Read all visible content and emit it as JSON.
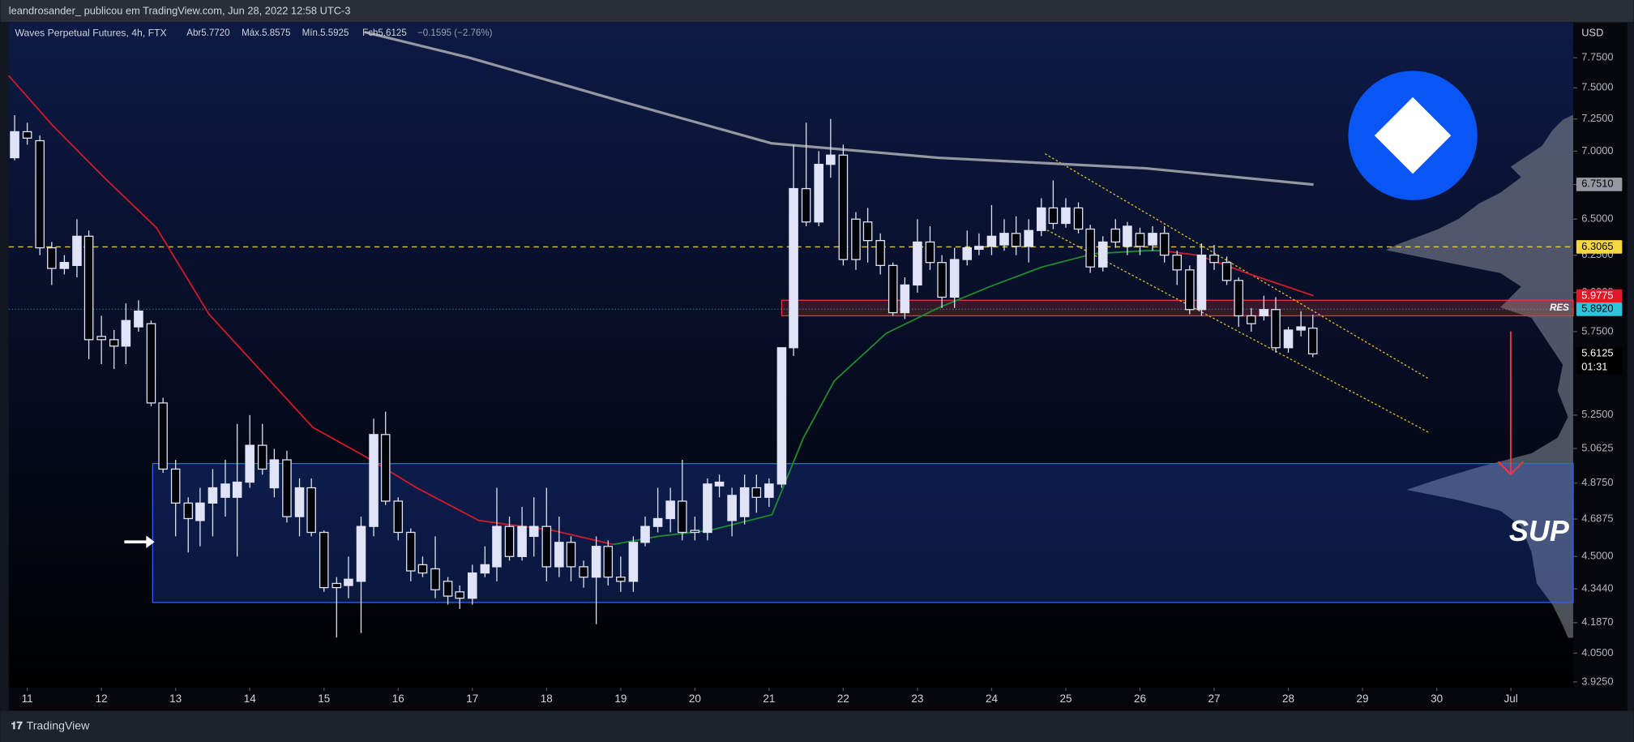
{
  "header": "leandrosander_ publicou em TradingView.com, Jun 28, 2022 12:58 UTC-3",
  "footer": "TradingView",
  "chart_data": {
    "type": "candlestick",
    "title": "Waves Perpetual Futures, 4h, FTX",
    "ohlc_legend": [
      "Abr5.7720",
      "Máx.5.8575",
      "Mín.5.5925",
      "Fch5.6125",
      "−0.1595 (−2.76%)"
    ],
    "y_unit": "USD",
    "log_scale": true,
    "grid": false,
    "up_color": "#dfe3f5",
    "down_color": "#02040a",
    "x": [
      10.83,
      11,
      11.17,
      11.33,
      11.5,
      11.67,
      11.83,
      12,
      12.17,
      12.33,
      12.5,
      12.67,
      12.83,
      13,
      13.17,
      13.33,
      13.5,
      13.67,
      13.83,
      14,
      14.17,
      14.33,
      14.5,
      14.67,
      14.83,
      15,
      15.17,
      15.33,
      15.5,
      15.67,
      15.83,
      16,
      16.17,
      16.33,
      16.5,
      16.67,
      16.83,
      17,
      17.17,
      17.33,
      17.5,
      17.67,
      17.83,
      18,
      18.17,
      18.33,
      18.5,
      18.67,
      18.83,
      19,
      19.17,
      19.33,
      19.5,
      19.67,
      19.83,
      20,
      20.17,
      20.33,
      20.5,
      20.67,
      20.83,
      21,
      21.17,
      21.33,
      21.5,
      21.67,
      21.83,
      22,
      22.17,
      22.33,
      22.5,
      22.67,
      22.83,
      23,
      23.17,
      23.33,
      23.5,
      23.67,
      23.83,
      24,
      24.17,
      24.33,
      24.5,
      24.67,
      24.83,
      25,
      25.17,
      25.33,
      25.5,
      25.67,
      25.83,
      26,
      26.17,
      26.33,
      26.5,
      26.67,
      26.83,
      27,
      27.17,
      27.33,
      27.5,
      27.67,
      27.83,
      28,
      28.17,
      28.33
    ],
    "open": [
      6.95,
      7.15,
      7.08,
      6.3,
      6.16,
      6.18,
      6.38,
      5.72,
      5.7,
      5.66,
      5.78,
      5.8,
      5.32,
      4.95,
      4.77,
      4.68,
      4.77,
      4.8,
      4.8,
      4.88,
      5.08,
      4.85,
      5.0,
      4.7,
      4.85,
      4.62,
      4.37,
      4.36,
      4.38,
      4.65,
      5.14,
      4.78,
      4.62,
      4.46,
      4.44,
      4.38,
      4.33,
      4.3,
      4.42,
      4.45,
      4.65,
      4.5,
      4.6,
      4.65,
      4.45,
      4.57,
      4.45,
      4.4,
      4.55,
      4.4,
      4.38,
      4.57,
      4.65,
      4.69,
      4.78,
      4.63,
      4.62,
      4.86,
      4.68,
      4.7,
      4.85,
      4.8,
      4.87,
      5.65,
      6.72,
      6.48,
      6.9,
      6.97,
      6.5,
      6.48,
      6.35,
      6.18,
      5.87,
      6.05,
      6.34,
      6.2,
      5.97,
      6.22,
      6.29,
      6.31,
      6.32,
      6.4,
      6.31,
      6.42,
      6.58,
      6.47,
      6.58,
      6.43,
      6.17,
      6.43,
      6.31,
      6.4,
      6.32,
      6.4,
      6.25,
      6.15,
      5.89,
      6.25,
      6.2,
      6.08,
      5.85,
      5.85,
      5.89,
      5.65,
      5.76,
      5.772
    ],
    "high": [
      7.28,
      7.22,
      7.12,
      6.34,
      6.25,
      6.5,
      6.42,
      5.85,
      5.76,
      5.93,
      5.95,
      5.82,
      5.35,
      5.0,
      4.8,
      4.85,
      4.95,
      5.0,
      5.2,
      5.25,
      5.2,
      5.06,
      5.05,
      4.9,
      4.9,
      4.63,
      4.4,
      4.5,
      4.7,
      5.23,
      5.27,
      4.8,
      4.64,
      4.5,
      4.6,
      4.4,
      4.36,
      4.46,
      4.55,
      4.85,
      4.7,
      4.75,
      4.8,
      4.85,
      4.7,
      4.6,
      4.48,
      4.6,
      4.58,
      4.5,
      4.6,
      4.7,
      4.85,
      4.85,
      5.0,
      4.7,
      4.9,
      4.92,
      4.85,
      4.92,
      4.92,
      4.9,
      5.65,
      7.05,
      7.22,
      7.0,
      7.25,
      7.05,
      6.55,
      6.58,
      6.4,
      6.2,
      6.1,
      6.5,
      6.45,
      6.25,
      6.3,
      6.42,
      6.4,
      6.6,
      6.5,
      6.52,
      6.5,
      6.65,
      6.78,
      6.65,
      6.62,
      6.46,
      6.38,
      6.5,
      6.48,
      6.44,
      6.45,
      6.45,
      6.28,
      6.18,
      6.33,
      6.32,
      6.24,
      6.1,
      5.9,
      5.98,
      5.97,
      5.78,
      5.88,
      5.8575
    ],
    "low": [
      6.93,
      7.05,
      6.25,
      6.05,
      6.12,
      6.1,
      5.58,
      5.55,
      5.52,
      5.55,
      5.75,
      5.3,
      4.93,
      4.6,
      4.52,
      4.55,
      4.6,
      4.7,
      4.5,
      4.85,
      4.92,
      4.8,
      4.67,
      4.6,
      4.6,
      4.33,
      4.12,
      4.3,
      4.14,
      4.6,
      4.76,
      4.58,
      4.38,
      4.4,
      4.3,
      4.27,
      4.25,
      4.27,
      4.4,
      4.38,
      4.48,
      4.48,
      4.5,
      4.38,
      4.4,
      4.38,
      4.35,
      4.18,
      4.36,
      4.33,
      4.33,
      4.55,
      4.62,
      4.62,
      4.58,
      4.58,
      4.58,
      4.8,
      4.6,
      4.66,
      4.72,
      4.75,
      4.85,
      5.6,
      6.45,
      6.45,
      6.8,
      6.18,
      6.15,
      6.2,
      6.12,
      5.85,
      5.83,
      6.0,
      6.15,
      5.9,
      5.9,
      6.18,
      6.25,
      6.25,
      6.28,
      6.25,
      6.2,
      6.38,
      6.43,
      6.44,
      6.4,
      6.13,
      6.14,
      6.3,
      6.25,
      6.25,
      6.28,
      6.2,
      6.05,
      5.86,
      5.85,
      6.15,
      6.05,
      5.78,
      5.75,
      5.82,
      5.62,
      5.62,
      5.72,
      5.5925
    ],
    "close": [
      7.15,
      7.1,
      6.3,
      6.16,
      6.2,
      6.38,
      5.7,
      5.7,
      5.66,
      5.82,
      5.88,
      5.32,
      4.95,
      4.77,
      4.69,
      4.77,
      4.85,
      4.87,
      4.88,
      5.08,
      4.95,
      5.0,
      4.7,
      4.85,
      4.62,
      4.35,
      4.35,
      4.39,
      4.65,
      5.14,
      4.78,
      4.62,
      4.43,
      4.42,
      4.34,
      4.31,
      4.3,
      4.42,
      4.46,
      4.65,
      4.5,
      4.65,
      4.65,
      4.45,
      4.57,
      4.45,
      4.4,
      4.55,
      4.4,
      4.38,
      4.57,
      4.65,
      4.69,
      4.78,
      4.62,
      4.62,
      4.87,
      4.88,
      4.81,
      4.85,
      4.8,
      4.87,
      5.65,
      6.72,
      6.48,
      6.9,
      6.97,
      6.22,
      6.22,
      6.35,
      6.18,
      5.87,
      6.05,
      6.34,
      6.2,
      5.97,
      6.22,
      6.3,
      6.31,
      6.38,
      6.4,
      6.31,
      6.42,
      6.58,
      6.47,
      6.58,
      6.43,
      6.17,
      6.34,
      6.34,
      6.45,
      6.31,
      6.4,
      6.25,
      6.15,
      5.89,
      6.25,
      6.2,
      6.08,
      5.85,
      5.8,
      5.89,
      5.65,
      5.76,
      5.78,
      5.6125
    ],
    "xlim": [
      10.75,
      31.84
    ],
    "xticks": [
      11,
      12,
      13,
      14,
      15,
      16,
      17,
      18,
      19,
      20,
      21,
      22,
      23,
      24,
      25,
      26,
      27,
      28,
      29,
      30,
      {
        "value": 31,
        "label": "Jul"
      }
    ],
    "ylim": [
      3.9,
      8.05
    ],
    "yticks": [
      {
        "value": 7.75,
        "label": "7.7500"
      },
      {
        "value": 7.5,
        "label": "7.5000"
      },
      {
        "value": 7.25,
        "label": "7.2500"
      },
      {
        "value": 7,
        "label": "7.0000"
      },
      {
        "value": 6.75,
        "label": "6.7500"
      },
      {
        "value": 6.5,
        "label": "6.5000"
      },
      {
        "value": 6.25,
        "label": "6.2500"
      },
      {
        "value": 6,
        "label": "6.0000"
      },
      {
        "value": 5.75,
        "label": "5.7500"
      },
      {
        "value": 5.25,
        "label": "5.2500"
      },
      5.0625,
      {
        "value": 4.875,
        "label": "4.8750"
      },
      4.6875,
      {
        "value": 4.5,
        "label": "4.5000"
      },
      {
        "value": 4.344,
        "label": "4.3440"
      },
      {
        "value": 4.187,
        "label": "4.1870"
      },
      {
        "value": 4.05,
        "label": "4.0500"
      },
      {
        "value": 3.925,
        "label": "3.9250"
      }
    ],
    "lines": [
      {
        "color": "#d01c28",
        "x": [
          10.75,
          11.34,
          12.04,
          12.74,
          13.45,
          14.15,
          14.85,
          15.55,
          16.25,
          17.09,
          18.08,
          18.9
        ],
        "values": [
          7.6,
          7.2,
          6.8,
          6.44,
          5.86,
          5.51,
          5.18,
          5.02,
          4.85,
          4.68,
          4.63,
          4.56
        ]
      },
      {
        "color": "#1f8a2e",
        "x": [
          18.9,
          19.5,
          20.2,
          21.04,
          21.46,
          21.88,
          22.58,
          23.28,
          23.98,
          24.68,
          25.38,
          26.08,
          26.29
        ],
        "values": [
          4.56,
          4.6,
          4.63,
          4.71,
          5.12,
          5.45,
          5.74,
          5.9,
          6.04,
          6.17,
          6.26,
          6.28,
          6.28
        ]
      },
      {
        "color": "#d01c28",
        "x": [
          26.29,
          26.78,
          27.49,
          28.34
        ],
        "values": [
          6.28,
          6.25,
          6.12,
          5.98
        ]
      },
      {
        "color": "#9598a1",
        "x": [
          15.55,
          16.96,
          19.07,
          21.03,
          23.28,
          24.68,
          26.08,
          28.34
        ],
        "values": [
          7.97,
          7.75,
          7.38,
          7.06,
          6.95,
          6.91,
          6.87,
          6.75
        ]
      }
    ],
    "trendlines": [
      {
        "color": "#e6c229",
        "x": [
          24.72,
          29.9
        ],
        "values": [
          6.98,
          5.46
        ]
      },
      {
        "color": "#e6c229",
        "x": [
          24.65,
          29.9
        ],
        "values": [
          6.45,
          5.15
        ]
      }
    ],
    "zones": [
      {
        "label": "RES",
        "x0": 21.17,
        "ylim": [
          5.85,
          5.95
        ],
        "color": "#e53935"
      },
      {
        "label": "SUP",
        "x0": 12.69,
        "ylim": [
          4.28,
          4.98
        ],
        "color": "#2962ff"
      }
    ],
    "price_badges": [
      {
        "value": 6.751,
        "label": "6.7510",
        "color": "#9598a1"
      },
      {
        "value": 6.3065,
        "label": "6.3065",
        "color": "#f5d742",
        "line": "dashed"
      },
      {
        "value": 5.9775,
        "label": "5.9775",
        "color": "#e0192a"
      },
      {
        "value": 5.892,
        "label": "5.8920",
        "color": "#2ec4de",
        "line": "dotted"
      },
      {
        "value": 5.6125,
        "label": "5.6125",
        "color": "#000000",
        "countdown": "01:31"
      }
    ]
  }
}
